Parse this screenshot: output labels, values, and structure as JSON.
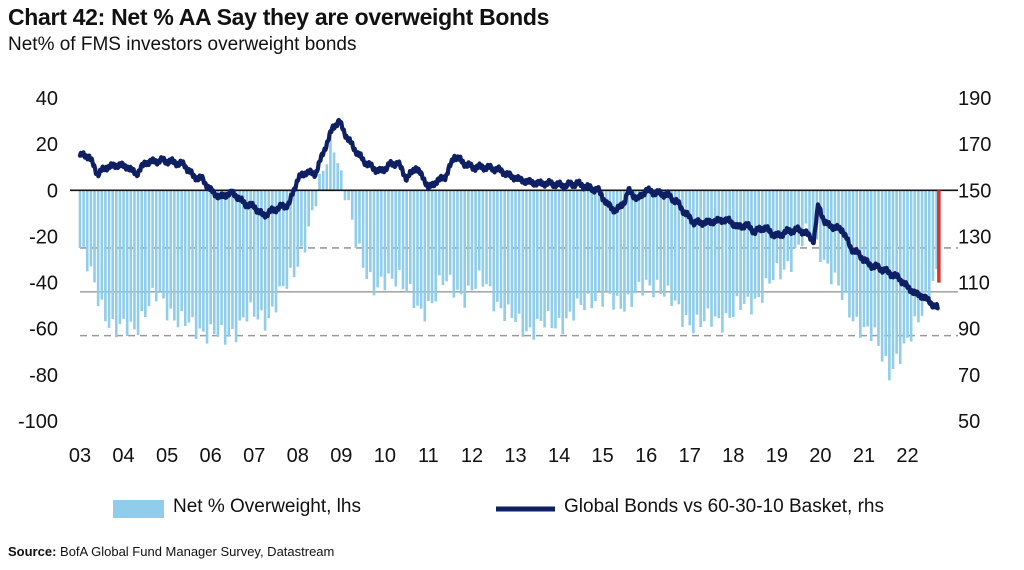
{
  "title": "Chart 42: Net % AA Say they are overweight Bonds",
  "subtitle": "Net% of FMS investors overweight bonds",
  "source_label": "Source:",
  "source_text": "BofA Global Fund Manager Survey, Datastream",
  "colors": {
    "bars": "#8fcdea",
    "line": "#0f1f63",
    "highlight": "#e0312b",
    "grid_dash": "#9a9a9a",
    "grid_solid": "#a8a8a8",
    "zero_line": "#111111"
  },
  "chart_data": {
    "type": "bar+line",
    "left_axis": {
      "ticks": [
        40,
        20,
        0,
        -20,
        -40,
        -60,
        -80,
        -100
      ],
      "range": [
        -100,
        40
      ]
    },
    "right_axis": {
      "ticks": [
        190,
        170,
        150,
        130,
        110,
        90,
        70,
        50
      ],
      "range": [
        50,
        190
      ]
    },
    "x_ticks": [
      "03",
      "04",
      "05",
      "06",
      "07",
      "08",
      "09",
      "10",
      "11",
      "12",
      "13",
      "14",
      "15",
      "16",
      "17",
      "18",
      "19",
      "20",
      "21",
      "22"
    ],
    "x_range": [
      2003.0,
      2022.7
    ],
    "reference_lines_lhs": [
      -25,
      -63
    ],
    "reference_lines_rhs": [
      106
    ],
    "series": [
      {
        "name": "Net % Overweight, lhs",
        "type": "bar",
        "axis": "left",
        "points": [
          [
            2003.0,
            -25
          ],
          [
            2003.4,
            -45
          ],
          [
            2003.8,
            -62
          ],
          [
            2004.3,
            -58
          ],
          [
            2004.8,
            -45
          ],
          [
            2005.3,
            -58
          ],
          [
            2005.8,
            -60
          ],
          [
            2006.3,
            -65
          ],
          [
            2006.8,
            -55
          ],
          [
            2007.3,
            -55
          ],
          [
            2007.8,
            -40
          ],
          [
            2008.3,
            -15
          ],
          [
            2008.6,
            10
          ],
          [
            2008.8,
            25
          ],
          [
            2009.0,
            5
          ],
          [
            2009.3,
            -20
          ],
          [
            2009.8,
            -45
          ],
          [
            2010.3,
            -35
          ],
          [
            2010.8,
            -55
          ],
          [
            2011.3,
            -40
          ],
          [
            2011.8,
            -45
          ],
          [
            2012.3,
            -40
          ],
          [
            2012.8,
            -55
          ],
          [
            2013.3,
            -60
          ],
          [
            2013.8,
            -58
          ],
          [
            2014.3,
            -55
          ],
          [
            2014.8,
            -45
          ],
          [
            2015.3,
            -50
          ],
          [
            2015.8,
            -45
          ],
          [
            2016.3,
            -40
          ],
          [
            2016.8,
            -55
          ],
          [
            2017.3,
            -58
          ],
          [
            2017.8,
            -55
          ],
          [
            2018.3,
            -50
          ],
          [
            2018.8,
            -42
          ],
          [
            2019.3,
            -30
          ],
          [
            2019.7,
            -20
          ],
          [
            2020.0,
            -25
          ],
          [
            2020.3,
            -40
          ],
          [
            2020.7,
            -52
          ],
          [
            2021.0,
            -62
          ],
          [
            2021.3,
            -65
          ],
          [
            2021.6,
            -78
          ],
          [
            2021.9,
            -72
          ],
          [
            2022.2,
            -55
          ],
          [
            2022.5,
            -45
          ],
          [
            2022.7,
            -38
          ]
        ]
      },
      {
        "name": "Global Bonds vs 60-30-10 Basket, rhs",
        "type": "line",
        "axis": "right",
        "points": [
          [
            2003.0,
            165
          ],
          [
            2003.2,
            165
          ],
          [
            2003.4,
            157
          ],
          [
            2003.6,
            160
          ],
          [
            2003.9,
            161
          ],
          [
            2004.1,
            160
          ],
          [
            2004.3,
            157
          ],
          [
            2004.5,
            162
          ],
          [
            2004.9,
            163
          ],
          [
            2005.2,
            162
          ],
          [
            2005.4,
            161
          ],
          [
            2005.6,
            156
          ],
          [
            2005.8,
            155
          ],
          [
            2006.0,
            150
          ],
          [
            2006.2,
            147
          ],
          [
            2006.5,
            149
          ],
          [
            2006.8,
            144
          ],
          [
            2007.0,
            143
          ],
          [
            2007.2,
            139
          ],
          [
            2007.5,
            142
          ],
          [
            2007.8,
            144
          ],
          [
            2008.0,
            155
          ],
          [
            2008.2,
            158
          ],
          [
            2008.4,
            157
          ],
          [
            2008.6,
            167
          ],
          [
            2008.8,
            177
          ],
          [
            2008.95,
            180
          ],
          [
            2009.1,
            174
          ],
          [
            2009.3,
            168
          ],
          [
            2009.5,
            163
          ],
          [
            2009.7,
            160
          ],
          [
            2009.9,
            158
          ],
          [
            2010.1,
            161
          ],
          [
            2010.3,
            162
          ],
          [
            2010.5,
            155
          ],
          [
            2010.7,
            160
          ],
          [
            2010.9,
            155
          ],
          [
            2011.0,
            151
          ],
          [
            2011.2,
            154
          ],
          [
            2011.4,
            156
          ],
          [
            2011.6,
            165
          ],
          [
            2011.8,
            162
          ],
          [
            2012.0,
            160
          ],
          [
            2012.3,
            160
          ],
          [
            2012.6,
            159
          ],
          [
            2012.9,
            156
          ],
          [
            2013.2,
            154
          ],
          [
            2013.5,
            153
          ],
          [
            2013.8,
            153
          ],
          [
            2014.1,
            152
          ],
          [
            2014.4,
            153
          ],
          [
            2014.7,
            151
          ],
          [
            2014.9,
            150
          ],
          [
            2015.1,
            144
          ],
          [
            2015.3,
            141
          ],
          [
            2015.5,
            145
          ],
          [
            2015.6,
            150
          ],
          [
            2015.8,
            146
          ],
          [
            2016.0,
            150
          ],
          [
            2016.2,
            149
          ],
          [
            2016.5,
            148
          ],
          [
            2016.7,
            145
          ],
          [
            2016.9,
            140
          ],
          [
            2017.1,
            136
          ],
          [
            2017.4,
            136
          ],
          [
            2017.7,
            137
          ],
          [
            2017.9,
            137
          ],
          [
            2018.1,
            134
          ],
          [
            2018.3,
            135
          ],
          [
            2018.5,
            132
          ],
          [
            2018.7,
            134
          ],
          [
            2019.0,
            130
          ],
          [
            2019.2,
            132
          ],
          [
            2019.5,
            133
          ],
          [
            2019.7,
            131
          ],
          [
            2019.85,
            128
          ],
          [
            2019.95,
            144
          ],
          [
            2020.1,
            136
          ],
          [
            2020.3,
            134
          ],
          [
            2020.5,
            133
          ],
          [
            2020.7,
            125
          ],
          [
            2020.9,
            122
          ],
          [
            2021.1,
            118
          ],
          [
            2021.4,
            116
          ],
          [
            2021.6,
            114
          ],
          [
            2021.8,
            112
          ],
          [
            2022.0,
            108
          ],
          [
            2022.2,
            105
          ],
          [
            2022.35,
            104
          ],
          [
            2022.5,
            102
          ],
          [
            2022.6,
            100
          ],
          [
            2022.7,
            99
          ]
        ]
      }
    ],
    "highlight": {
      "x": 2022.72,
      "from_lhs": 0,
      "to_lhs": -40
    },
    "legend": {
      "position": "bottom",
      "entries": [
        {
          "label": "Net % Overweight, lhs",
          "symbol": "bar"
        },
        {
          "label": "Global Bonds vs 60-30-10 Basket, rhs",
          "symbol": "line"
        }
      ]
    }
  }
}
